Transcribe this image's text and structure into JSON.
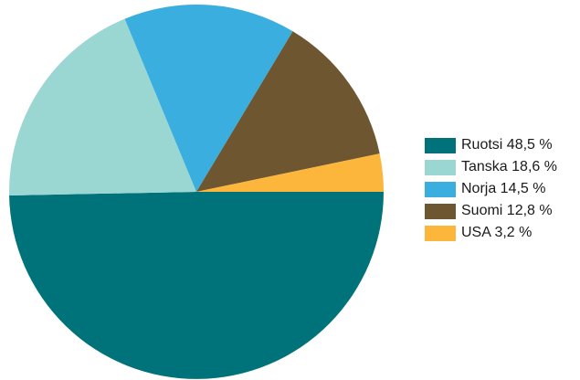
{
  "chart_data": {
    "type": "pie",
    "title": "",
    "slices": [
      {
        "label": "Ruotsi 48,5 %",
        "value": 48.5,
        "color": "#00727a"
      },
      {
        "label": "Tanska 18,6 %",
        "value": 18.6,
        "color": "#9ad6d2"
      },
      {
        "label": "Norja 14,5 %",
        "value": 14.5,
        "color": "#3aaedf"
      },
      {
        "label": "Suomi 12,8 %",
        "value": 12.8,
        "color": "#6e5630"
      },
      {
        "label": "USA 3,2 %",
        "value": 3.2,
        "color": "#fbb63b"
      }
    ],
    "legend_position": "right"
  }
}
